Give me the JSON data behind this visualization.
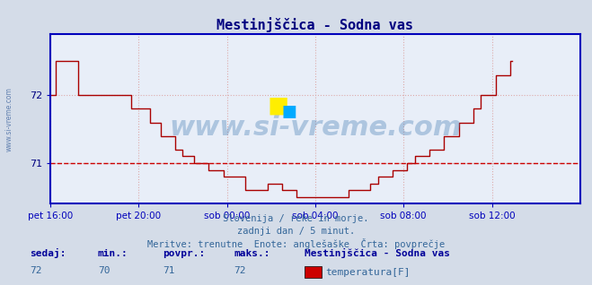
{
  "title": "Mestinjščica - Sodna vas",
  "bg_color": "#d4dce8",
  "plot_bg_color": "#e8eef8",
  "line_color": "#aa0000",
  "avg_line_color": "#cc0000",
  "avg_value": 71,
  "ylim": [
    70.4,
    72.9
  ],
  "yticks": [
    71,
    72
  ],
  "axis_color": "#0000bb",
  "grid_color": "#ddaaaa",
  "title_color": "#000080",
  "tick_color": "#000080",
  "watermark_large": "www.si-vreme.com",
  "watermark_side": "www.si-vreme.com",
  "footer_line1": "Slovenija / reke in morje.",
  "footer_line2": "zadnji dan / 5 minut.",
  "footer_line3": "Meritve: trenutne  Enote: anglešaške  Črta: povprečje",
  "stat_label_sedaj": "sedaj:",
  "stat_label_min": "min.:",
  "stat_label_povpr": "povpr.:",
  "stat_label_maks": "maks.:",
  "stat_sedaj": 72,
  "stat_min": 70,
  "stat_povpr": 71,
  "stat_maks": 72,
  "station_name": "Mestinjščica - Sodna vas",
  "legend_label": "temperatura[F]",
  "legend_color": "#cc0000",
  "x_tick_labels": [
    "pet 16:00",
    "pet 20:00",
    "sob 00:00",
    "sob 04:00",
    "sob 08:00",
    "sob 12:00"
  ],
  "x_tick_positions": [
    0,
    48,
    96,
    144,
    192,
    240
  ],
  "temperature_data": [
    72.0,
    72.0,
    72.0,
    72.5,
    72.5,
    72.5,
    72.5,
    72.5,
    72.5,
    72.5,
    72.5,
    72.5,
    72.5,
    72.5,
    72.5,
    72.0,
    72.0,
    72.0,
    72.0,
    72.0,
    72.0,
    72.0,
    72.0,
    72.0,
    72.0,
    72.0,
    72.0,
    72.0,
    72.0,
    72.0,
    72.0,
    72.0,
    72.0,
    72.0,
    72.0,
    72.0,
    72.0,
    72.0,
    72.0,
    72.0,
    72.0,
    72.0,
    72.0,
    72.0,
    71.8,
    71.8,
    71.8,
    71.8,
    71.8,
    71.8,
    71.8,
    71.8,
    71.8,
    71.8,
    71.6,
    71.6,
    71.6,
    71.6,
    71.6,
    71.6,
    71.4,
    71.4,
    71.4,
    71.4,
    71.4,
    71.4,
    71.4,
    71.4,
    71.2,
    71.2,
    71.2,
    71.2,
    71.1,
    71.1,
    71.1,
    71.1,
    71.1,
    71.1,
    71.0,
    71.0,
    71.0,
    71.0,
    71.0,
    71.0,
    71.0,
    71.0,
    70.9,
    70.9,
    70.9,
    70.9,
    70.9,
    70.9,
    70.9,
    70.9,
    70.8,
    70.8,
    70.8,
    70.8,
    70.8,
    70.8,
    70.8,
    70.8,
    70.8,
    70.8,
    70.8,
    70.8,
    70.6,
    70.6,
    70.6,
    70.6,
    70.6,
    70.6,
    70.6,
    70.6,
    70.6,
    70.6,
    70.6,
    70.6,
    70.7,
    70.7,
    70.7,
    70.7,
    70.7,
    70.7,
    70.7,
    70.7,
    70.6,
    70.6,
    70.6,
    70.6,
    70.6,
    70.6,
    70.6,
    70.6,
    70.5,
    70.5,
    70.5,
    70.5,
    70.5,
    70.5,
    70.5,
    70.5,
    70.5,
    70.5,
    70.5,
    70.5,
    70.5,
    70.5,
    70.5,
    70.5,
    70.5,
    70.5,
    70.5,
    70.5,
    70.5,
    70.5,
    70.5,
    70.5,
    70.5,
    70.5,
    70.5,
    70.5,
    70.6,
    70.6,
    70.6,
    70.6,
    70.6,
    70.6,
    70.6,
    70.6,
    70.6,
    70.6,
    70.6,
    70.6,
    70.7,
    70.7,
    70.7,
    70.7,
    70.8,
    70.8,
    70.8,
    70.8,
    70.8,
    70.8,
    70.8,
    70.8,
    70.9,
    70.9,
    70.9,
    70.9,
    70.9,
    70.9,
    70.9,
    70.9,
    71.0,
    71.0,
    71.0,
    71.0,
    71.1,
    71.1,
    71.1,
    71.1,
    71.1,
    71.1,
    71.1,
    71.1,
    71.2,
    71.2,
    71.2,
    71.2,
    71.2,
    71.2,
    71.2,
    71.2,
    71.4,
    71.4,
    71.4,
    71.4,
    71.4,
    71.4,
    71.4,
    71.4,
    71.6,
    71.6,
    71.6,
    71.6,
    71.6,
    71.6,
    71.6,
    71.6,
    71.8,
    71.8,
    71.8,
    71.8,
    72.0,
    72.0,
    72.0,
    72.0,
    72.0,
    72.0,
    72.0,
    72.0,
    72.3,
    72.3,
    72.3,
    72.3,
    72.3,
    72.3,
    72.3,
    72.3,
    72.5,
    72.5
  ]
}
